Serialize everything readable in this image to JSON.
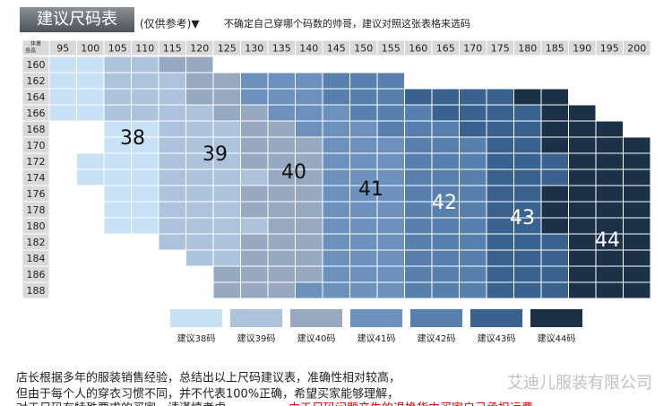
{
  "header": {
    "title": "建议尺码表",
    "note": "(仅供参考)▼",
    "hint": "不确定自己穿哪个码数的帅哥，建议对照这张表格来选码"
  },
  "corner": {
    "top": "体重",
    "bottom": "身高"
  },
  "columns": [
    95,
    100,
    105,
    110,
    115,
    120,
    125,
    130,
    135,
    140,
    145,
    150,
    155,
    160,
    165,
    170,
    175,
    180,
    185,
    190,
    195,
    200
  ],
  "rows": [
    160,
    162,
    164,
    166,
    168,
    170,
    172,
    174,
    176,
    178,
    180,
    182,
    184,
    186,
    188
  ],
  "sizes": [
    {
      "size": 38,
      "label": "建议38码",
      "color": "#c9e1f5"
    },
    {
      "size": 39,
      "label": "建议39码",
      "color": "#adc3dc"
    },
    {
      "size": 40,
      "label": "建议40码",
      "color": "#97a9c1"
    },
    {
      "size": 41,
      "label": "建议41码",
      "color": "#6b91bc"
    },
    {
      "size": 42,
      "label": "建议42码",
      "color": "#5880ad"
    },
    {
      "size": 43,
      "label": "建议43码",
      "color": "#3a628f"
    },
    {
      "size": 44,
      "label": "建议44码",
      "color": "#1c3048"
    }
  ],
  "grid": [
    [
      38,
      38,
      39,
      39,
      40,
      40,
      null,
      null,
      null,
      null,
      null,
      null,
      null,
      null,
      null,
      null,
      null,
      null,
      null,
      null,
      null,
      null
    ],
    [
      38,
      38,
      39,
      39,
      39,
      40,
      40,
      41,
      41,
      41,
      42,
      42,
      42,
      null,
      null,
      null,
      null,
      null,
      null,
      null,
      null,
      null
    ],
    [
      38,
      38,
      39,
      39,
      39,
      40,
      40,
      41,
      41,
      41,
      42,
      42,
      42,
      43,
      43,
      43,
      43,
      44,
      44,
      null,
      null,
      null
    ],
    [
      38,
      38,
      39,
      39,
      39,
      39,
      40,
      40,
      41,
      41,
      41,
      42,
      42,
      42,
      43,
      43,
      43,
      43,
      44,
      44,
      null,
      null
    ],
    [
      null,
      null,
      38,
      38,
      39,
      39,
      39,
      40,
      40,
      41,
      41,
      41,
      42,
      42,
      42,
      43,
      43,
      43,
      44,
      44,
      44,
      null
    ],
    [
      null,
      null,
      38,
      38,
      39,
      39,
      39,
      40,
      40,
      40,
      41,
      41,
      41,
      42,
      42,
      42,
      43,
      43,
      44,
      44,
      44,
      44
    ],
    [
      null,
      38,
      38,
      38,
      39,
      39,
      39,
      40,
      40,
      40,
      41,
      41,
      41,
      42,
      42,
      42,
      43,
      43,
      43,
      44,
      44,
      44
    ],
    [
      null,
      38,
      38,
      38,
      39,
      39,
      39,
      39,
      40,
      40,
      41,
      41,
      41,
      42,
      42,
      42,
      43,
      43,
      43,
      44,
      44,
      44
    ],
    [
      null,
      null,
      38,
      38,
      39,
      39,
      39,
      40,
      40,
      40,
      41,
      41,
      41,
      42,
      42,
      42,
      43,
      43,
      44,
      44,
      44,
      44
    ],
    [
      null,
      null,
      38,
      38,
      39,
      39,
      39,
      40,
      40,
      40,
      41,
      41,
      41,
      42,
      42,
      42,
      43,
      43,
      44,
      44,
      44,
      44
    ],
    [
      null,
      null,
      38,
      38,
      39,
      39,
      39,
      39,
      40,
      40,
      41,
      41,
      41,
      42,
      42,
      42,
      43,
      43,
      44,
      44,
      44,
      44
    ],
    [
      null,
      null,
      null,
      null,
      39,
      39,
      39,
      40,
      40,
      40,
      41,
      41,
      41,
      42,
      42,
      42,
      43,
      43,
      43,
      44,
      44,
      44
    ],
    [
      null,
      null,
      null,
      null,
      null,
      39,
      39,
      40,
      40,
      40,
      41,
      41,
      41,
      42,
      42,
      42,
      43,
      43,
      43,
      44,
      44,
      44
    ],
    [
      null,
      null,
      null,
      null,
      null,
      null,
      40,
      40,
      40,
      40,
      41,
      41,
      41,
      42,
      42,
      42,
      43,
      43,
      43,
      44,
      44,
      44
    ],
    [
      null,
      null,
      null,
      null,
      null,
      null,
      40,
      40,
      40,
      41,
      41,
      41,
      41,
      42,
      42,
      42,
      43,
      43,
      43,
      44,
      44,
      44
    ]
  ],
  "footer": {
    "line1": "店长根据多年的服装销售经验，总结出以上尺码建议表，准确性相对较高，",
    "line2": "但由于每个人的穿衣习惯不同，并不代表100%正确，希望买家能够理解，",
    "line3": "对于尺码有特殊要求的买家，请谨慎考虑，",
    "warning": "由于尺码问题产生的退换货由买家自己承担运费",
    "watermark": "艾迪儿服装有限公司"
  }
}
